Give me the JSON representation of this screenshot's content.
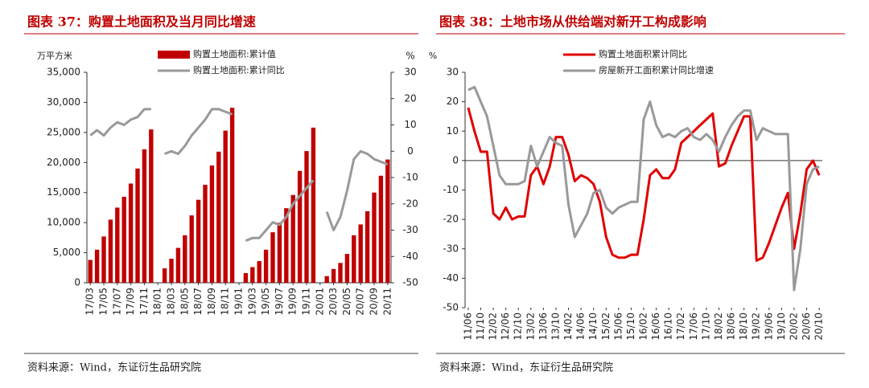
{
  "chart_data": [
    {
      "type": "bar_line",
      "title": "图表 37：购置土地面积及当月同比增速",
      "ylabel": "万平方米",
      "y2label": "%",
      "source": "资料来源：Wind，东证衍生品研究院",
      "categories": [
        "17/03",
        null,
        "17/05",
        null,
        "17/07",
        null,
        "17/09",
        null,
        "17/11",
        null,
        "18/01",
        null,
        "18/03",
        null,
        "18/05",
        null,
        "18/07",
        null,
        "18/09",
        null,
        "18/11",
        null,
        "19/01",
        null,
        "19/03",
        null,
        "19/05",
        null,
        "19/07",
        null,
        "19/09",
        null,
        "19/11",
        null,
        "20/01",
        null,
        "20/03",
        null,
        "20/05",
        null,
        "20/07",
        null,
        "20/09",
        null,
        "20/11"
      ],
      "series": [
        {
          "name": "购置土地面积:累计值",
          "type": "bar",
          "color": "#c00000",
          "values": [
            3800,
            5500,
            7700,
            10500,
            12500,
            14300,
            16500,
            19000,
            22200,
            25500,
            null,
            2400,
            4000,
            5800,
            7900,
            11200,
            13800,
            16300,
            19500,
            21800,
            25300,
            29100,
            null,
            1600,
            2600,
            3600,
            5500,
            8400,
            10000,
            12400,
            14600,
            18600,
            21900,
            25800,
            null,
            1100,
            2300,
            3300,
            4800,
            7900,
            9700,
            11900,
            15000,
            17800,
            20500
          ]
        },
        {
          "name": "购置土地面积:累计同比",
          "type": "line",
          "axis": "y2",
          "color": "#999999",
          "values": [
            6,
            8,
            6,
            9,
            11,
            10,
            12,
            13,
            16,
            16,
            null,
            -1,
            0,
            -1,
            2,
            6,
            9,
            12,
            16,
            16,
            15,
            14,
            null,
            -34,
            -33,
            -33,
            -30,
            -27,
            -28,
            -25,
            -20,
            -17,
            -14,
            -11,
            null,
            -23,
            -30,
            -25,
            -15,
            -3,
            0,
            -1,
            -3,
            -4,
            -5
          ]
        }
      ],
      "ylim": [
        0,
        35000
      ],
      "yticks": [
        0,
        {
          "value": 5000,
          "label": "5,000"
        },
        {
          "value": 10000,
          "label": "10,000"
        },
        {
          "value": 15000,
          "label": "15,000"
        },
        {
          "value": 20000,
          "label": "20,000"
        },
        {
          "value": 25000,
          "label": "25,000"
        },
        {
          "value": 30000,
          "label": "30,000"
        },
        {
          "value": 35000,
          "label": "35,000"
        }
      ],
      "y2lim": [
        -50,
        30
      ],
      "y2ticks": [
        -50,
        -40,
        -30,
        -20,
        -10,
        0,
        10,
        20,
        30
      ],
      "legend": "top"
    },
    {
      "type": "line",
      "title": "图表 38：土地市场从供给端对新开工构成影响",
      "ylabel": "%",
      "source": "资料来源：Wind，东证衍生品研究院",
      "categories": [
        "11/06",
        null,
        "11/10",
        null,
        "12/02",
        null,
        "12/06",
        null,
        "12/10",
        null,
        "13/02",
        null,
        "13/06",
        null,
        "13/10",
        null,
        "14/02",
        null,
        "14/06",
        null,
        "14/10",
        null,
        "15/02",
        null,
        "15/06",
        null,
        "15/10",
        null,
        "16/02",
        null,
        "16/06",
        null,
        "16/10",
        null,
        "17/02",
        null,
        "17/06",
        null,
        "17/10",
        null,
        "18/02",
        null,
        "18/06",
        null,
        "18/10",
        null,
        "19/02",
        null,
        "19/06",
        null,
        "19/10",
        null,
        "20/02",
        null,
        "20/06",
        null,
        "20/10"
      ],
      "series": [
        {
          "name": "购置土地面积累计同比",
          "color": "#e00000",
          "values": [
            18,
            10,
            3,
            3,
            -18,
            -20,
            -16,
            -20,
            -19,
            -19,
            -5,
            -2,
            -8,
            -2,
            8,
            8,
            2,
            -7,
            -5,
            -6,
            -8,
            -14,
            -26,
            -32,
            -33,
            -33,
            -32,
            -32,
            -20,
            -5,
            -3,
            -6,
            -6,
            -3,
            6,
            8,
            10,
            12,
            14,
            16,
            -2,
            -1,
            5,
            10,
            15,
            15,
            -34,
            -33,
            -28,
            -22,
            -16,
            -11,
            -30,
            -18,
            -3,
            0,
            -5
          ]
        },
        {
          "name": "房屋新开工面积累计同比增速",
          "color": "#999999",
          "values": [
            24,
            25,
            20,
            15,
            5,
            -5,
            -8,
            -8,
            -8,
            -7,
            5,
            -2,
            3,
            8,
            6,
            5,
            -15,
            -26,
            -22,
            -18,
            -11,
            -10,
            -16,
            -18,
            -16,
            -15,
            -14,
            -14,
            14,
            20,
            12,
            8,
            9,
            8,
            10,
            11,
            8,
            7,
            9,
            7,
            3,
            8,
            12,
            15,
            17,
            17,
            7,
            11,
            10,
            9,
            9,
            9,
            -44,
            -30,
            -8,
            -3,
            -2
          ]
        }
      ],
      "ylim": [
        -50,
        30
      ],
      "yticks": [
        -50,
        -40,
        -30,
        -20,
        -10,
        0,
        10,
        20,
        30
      ],
      "legend": "top"
    }
  ]
}
